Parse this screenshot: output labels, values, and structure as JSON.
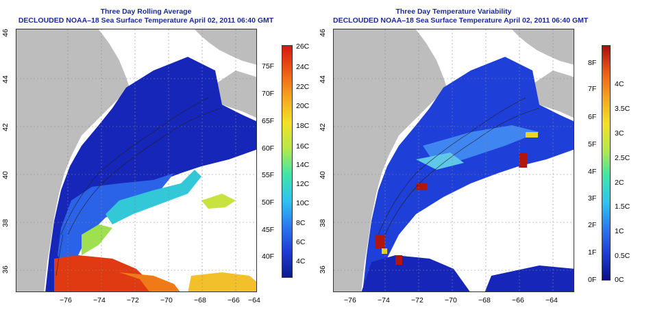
{
  "panels": [
    {
      "title_line1": "Three Day Rolling Average",
      "title_line2": "DECLOUDED NOAA–18 Sea Surface Temperature April 02, 2011 06:40 GMT",
      "x_ticks": [
        "−76",
        "−74",
        "−72",
        "−70",
        "−68",
        "−66",
        "−64"
      ],
      "y_ticks": [
        "46",
        "44",
        "42",
        "40",
        "38",
        "36"
      ],
      "colorbar_left_labels": [
        "75F",
        "70F",
        "65F",
        "60F",
        "55F",
        "50F",
        "45F",
        "40F"
      ],
      "colorbar_right_labels": [
        "26C",
        "24C",
        "22C",
        "20C",
        "18C",
        "16C",
        "14C",
        "12C",
        "10C",
        "8C",
        "6C",
        "4C"
      ],
      "colorbar_colors": [
        "#0b1a8c",
        "#1f3bd6",
        "#2a7bf0",
        "#2ec4f0",
        "#3ee6a8",
        "#b6e84a",
        "#f2e126",
        "#f5a51e",
        "#ee5a16",
        "#d41a0e"
      ]
    },
    {
      "title_line1": "Three Day Temperature Variability",
      "title_line2": "DECLOUDED NOAA–18 Sea Surface Temperature April 02, 2011 06:40 GMT",
      "x_ticks": [
        "−76",
        "−74",
        "−72",
        "−70",
        "−68",
        "−66",
        "−64"
      ],
      "y_ticks": [
        "46",
        "44",
        "42",
        "40",
        "38",
        "36"
      ],
      "colorbar_left_labels": [
        "8F",
        "7F",
        "6F",
        "5F",
        "4F",
        "3F",
        "2F",
        "1F",
        "0F"
      ],
      "colorbar_right_labels": [
        "4C",
        "3.5C",
        "3C",
        "2.5C",
        "2C",
        "1.5C",
        "1C",
        "0.5C",
        "0C"
      ],
      "colorbar_colors": [
        "#0b0f8a",
        "#1f3bd6",
        "#2a7bf0",
        "#2ec4f0",
        "#3ee6a8",
        "#b6e84a",
        "#f2e126",
        "#f5a51e",
        "#ee5a16",
        "#a8100c"
      ]
    }
  ]
}
